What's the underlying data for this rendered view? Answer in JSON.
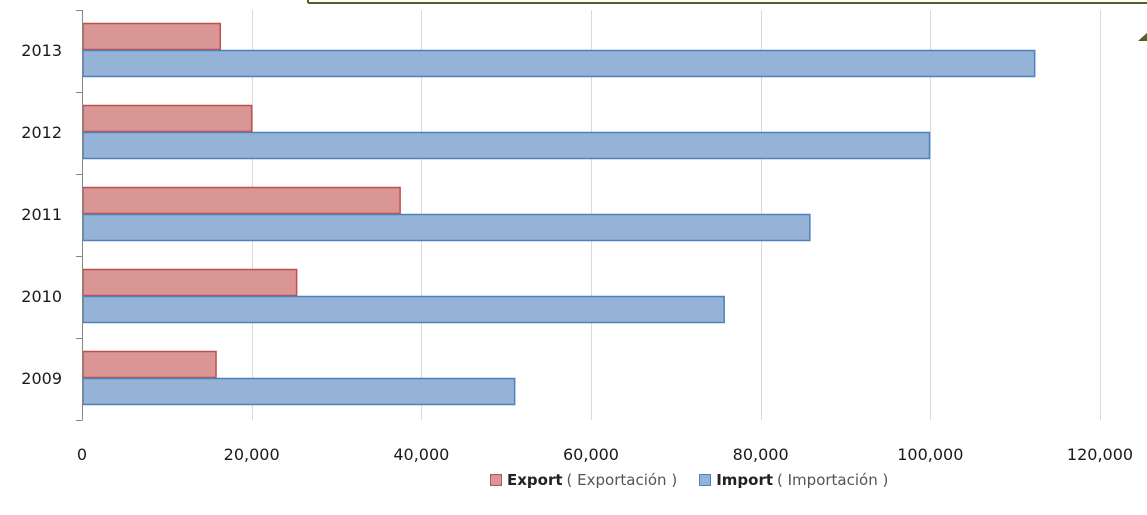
{
  "colors": {
    "export_fill": "#d99694",
    "export_stroke": "#c0504d",
    "import_fill": "#95b3d7",
    "import_stroke": "#4f81bd",
    "grid": "#d9d9d9",
    "axis": "#868686",
    "frame_top": "#4f6228"
  },
  "chart_data": {
    "type": "bar",
    "orientation": "horizontal",
    "categories": [
      "2013",
      "2012",
      "2011",
      "2010",
      "2009"
    ],
    "series": [
      {
        "name": "Export",
        "name_sub": "( Exportación )",
        "values": [
          16300,
          20000,
          37500,
          25300,
          15800
        ]
      },
      {
        "name": "Import",
        "name_sub": "( Importación )",
        "values": [
          112300,
          99900,
          85800,
          75700,
          51000
        ]
      }
    ],
    "xlim": [
      0,
      120000
    ],
    "x_ticks": [
      0,
      20000,
      40000,
      60000,
      80000,
      100000,
      120000
    ],
    "x_tick_labels": [
      "0",
      "20,000",
      "40,000",
      "60,000",
      "80,000",
      "100,000",
      "120,000"
    ],
    "grid": true,
    "legend_position": "bottom-center"
  }
}
